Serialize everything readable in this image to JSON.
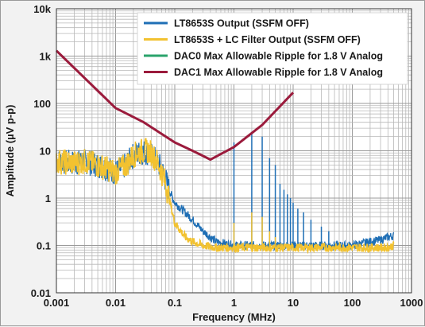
{
  "chart_data": {
    "type": "line",
    "xlabel": "Frequency (MHz)",
    "ylabel": "Amplitude (µV p-p)",
    "x_scale": "log",
    "y_scale": "log",
    "xlim": [
      0.001,
      1000
    ],
    "ylim": [
      0.01,
      10000
    ],
    "x_ticks": [
      "0.001",
      "0.01",
      "0.1",
      "1",
      "10",
      "100",
      "1000"
    ],
    "y_ticks": [
      "0.01",
      "0.1",
      "1",
      "10",
      "100",
      "1k",
      "10k"
    ],
    "grid": true,
    "legend_position": "top-right",
    "series": [
      {
        "name": "LT8653S Output (SSFM OFF)",
        "color": "#1f6fb5",
        "x": [
          0.001,
          0.002,
          0.003,
          0.005,
          0.008,
          0.01,
          0.015,
          0.02,
          0.025,
          0.03,
          0.035,
          0.04,
          0.05,
          0.06,
          0.07,
          0.08,
          0.1,
          0.15,
          0.2,
          0.3,
          0.5,
          1,
          2,
          5,
          10,
          20,
          50,
          100,
          200,
          300,
          400,
          500
        ],
        "y": [
          6,
          5.5,
          6,
          5,
          4,
          3.5,
          5,
          8,
          9,
          9.5,
          9,
          8,
          6,
          4,
          2.5,
          1.5,
          0.8,
          0.5,
          0.35,
          0.2,
          0.12,
          0.1,
          0.1,
          0.1,
          0.1,
          0.1,
          0.1,
          0.1,
          0.12,
          0.13,
          0.15,
          0.16
        ],
        "spikes": [
          {
            "x": 1,
            "peak": 15
          },
          {
            "x": 2,
            "peak": 25
          },
          {
            "x": 3,
            "peak": 20
          },
          {
            "x": 4,
            "peak": 7
          },
          {
            "x": 5,
            "peak": 5
          },
          {
            "x": 6,
            "peak": 2
          },
          {
            "x": 7,
            "peak": 1.5
          },
          {
            "x": 8,
            "peak": 1.2
          },
          {
            "x": 9,
            "peak": 1
          },
          {
            "x": 10,
            "peak": 0.8
          },
          {
            "x": 12,
            "peak": 0.6
          },
          {
            "x": 15,
            "peak": 0.5
          },
          {
            "x": 20,
            "peak": 0.35
          },
          {
            "x": 30,
            "peak": 0.25
          },
          {
            "x": 40,
            "peak": 0.2
          }
        ]
      },
      {
        "name": "LT8653S + LC Filter Output (SSFM OFF)",
        "color": "#f2c230",
        "x": [
          0.001,
          0.002,
          0.003,
          0.005,
          0.008,
          0.01,
          0.015,
          0.02,
          0.025,
          0.03,
          0.035,
          0.04,
          0.05,
          0.06,
          0.07,
          0.08,
          0.1,
          0.15,
          0.2,
          0.3,
          0.5,
          1,
          2,
          5,
          10,
          20,
          50,
          100,
          200,
          300,
          400,
          500
        ],
        "y": [
          6,
          5.5,
          6,
          5,
          4,
          3.5,
          5,
          8,
          9.5,
          10,
          10,
          9,
          6,
          3.5,
          2,
          1,
          0.3,
          0.15,
          0.12,
          0.1,
          0.09,
          0.09,
          0.09,
          0.09,
          0.09,
          0.09,
          0.09,
          0.09,
          0.09,
          0.09,
          0.09,
          0.1
        ],
        "spikes": [
          {
            "x": 1,
            "peak": 0.3
          },
          {
            "x": 2,
            "peak": 0.5
          },
          {
            "x": 3,
            "peak": 0.4
          },
          {
            "x": 4,
            "peak": 0.2
          },
          {
            "x": 5,
            "peak": 0.15
          }
        ]
      },
      {
        "name": "DAC0 Max Allowable Ripple for 1.8 V Analog",
        "color": "#2aa36b",
        "x": [],
        "y": []
      },
      {
        "name": "DAC1 Max Allowable Ripple for 1.8 V Analog",
        "color": "#9b1b3c",
        "x": [
          0.001,
          0.01,
          0.03,
          0.1,
          0.2,
          0.4,
          1,
          3,
          10
        ],
        "y": [
          1300,
          80,
          40,
          15,
          10,
          6.5,
          12,
          35,
          170
        ]
      }
    ]
  }
}
